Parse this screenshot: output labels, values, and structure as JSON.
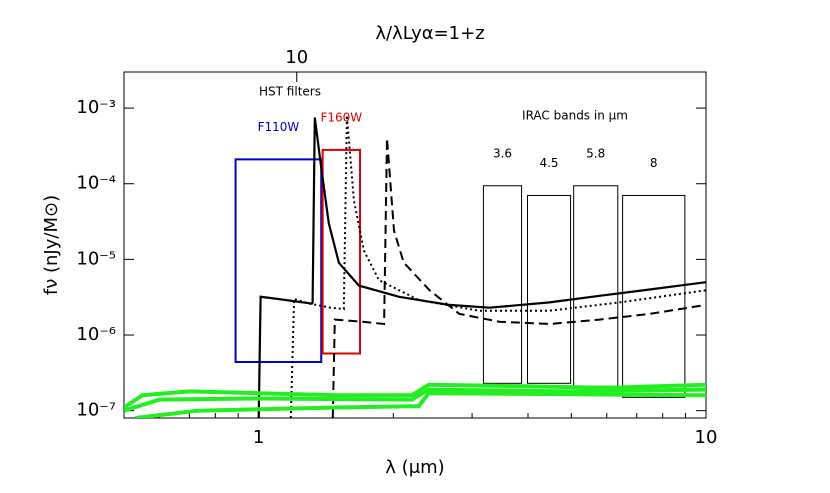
{
  "chart_data": {
    "type": "line",
    "x2label": "λ/λLyα=1+z",
    "xlabel": "λ (μm)",
    "ylabel": "fν  (nJy/M⊙)",
    "xscale": "log",
    "yscale": "log",
    "xlim": [
      0.5,
      10
    ],
    "xticks": [
      1,
      10
    ],
    "xminorticks": [
      0.6,
      0.7,
      0.8,
      0.9,
      2,
      3,
      4,
      5,
      6,
      7,
      8,
      9
    ],
    "x2lim": [
      4.11,
      82.2
    ],
    "x2ticks": [
      10
    ],
    "ylim": [
      8e-08,
      0.003
    ],
    "yticks": [
      {
        "value": 1e-07,
        "label": "10⁻⁷"
      },
      {
        "value": 1e-06,
        "label": "10⁻⁶"
      },
      {
        "value": 1e-05,
        "label": "10⁻⁵"
      },
      {
        "value": 0.0001,
        "label": "10⁻⁴"
      },
      {
        "value": 0.001,
        "label": "10⁻³"
      }
    ],
    "annotations": [
      "HST filters",
      "IRAC bands in μm"
    ],
    "filters": [
      {
        "name": "F110W",
        "color": "#0000cc",
        "x": [
          0.888,
          1.38
        ],
        "y": [
          4.4e-07,
          0.00021
        ]
      },
      {
        "name": "F160W",
        "color": "#dd0000",
        "x": [
          1.39,
          1.685
        ],
        "y": [
          5.7e-07,
          0.00028
        ]
      },
      {
        "name": "3.6",
        "color": "#000000",
        "x": [
          3.18,
          3.87
        ],
        "y": [
          2.3e-07,
          9.4e-05
        ]
      },
      {
        "name": "4.5",
        "color": "#000000",
        "x": [
          3.99,
          4.98
        ],
        "y": [
          2.3e-07,
          7e-05
        ]
      },
      {
        "name": "5.8",
        "color": "#000000",
        "x": [
          5.06,
          6.35
        ],
        "y": [
          2.1e-07,
          9.4e-05
        ]
      },
      {
        "name": "8",
        "color": "#000000",
        "x": [
          6.51,
          8.97
        ],
        "y": [
          1.5e-07,
          7e-05
        ]
      }
    ],
    "series": [
      {
        "color": "#000000",
        "dash": "solid",
        "width": 2.2,
        "x": [
          1.0,
          1.01,
          1.1,
          1.2,
          1.315,
          1.32,
          1.335,
          1.377,
          1.435,
          1.511,
          1.675,
          2.06,
          2.67,
          3.28,
          4.47,
          5.78,
          7.48,
          10
        ],
        "values": [
          8e-08,
          3.2e-06,
          3e-06,
          2.8e-06,
          2.6e-06,
          2.7e-06,
          0.00075,
          0.00018,
          3e-05,
          9e-06,
          4.5e-06,
          3.2e-06,
          2.5e-06,
          2.3e-06,
          2.7e-06,
          3.3e-06,
          4e-06,
          5e-06
        ]
      },
      {
        "color": "#000000",
        "dash": "dotted",
        "width": 2,
        "x": [
          1.18,
          1.2,
          1.3,
          1.45,
          1.55,
          1.575,
          1.633,
          1.72,
          1.858,
          2.28,
          3.11,
          4.47,
          6.41,
          10
        ],
        "values": [
          8e-08,
          3e-06,
          2.6e-06,
          2.3e-06,
          2.2e-06,
          0.0008,
          6e-05,
          1.3e-05,
          5.3e-06,
          2.9e-06,
          2.1e-06,
          2.1e-06,
          2.7e-06,
          3.9e-06
        ]
      },
      {
        "color": "#000000",
        "dash": "dashed",
        "width": 2,
        "x": [
          1.465,
          1.48,
          1.7,
          1.907,
          1.936,
          2.007,
          2.11,
          2.41,
          2.81,
          3.45,
          4.47,
          5.78,
          7.48,
          10
        ],
        "values": [
          8e-08,
          1.6e-06,
          1.5e-06,
          1.4e-06,
          0.0004,
          2.4e-05,
          9.1e-06,
          3.9e-06,
          1.9e-06,
          1.5e-06,
          1.4e-06,
          1.6e-06,
          1.9e-06,
          2.5e-06
        ]
      },
      {
        "color": "#22ee22",
        "dash": "solid",
        "width": 4,
        "x": [
          0.5,
          0.55,
          0.7,
          1.0,
          1.5,
          2.2,
          2.4,
          4,
          6,
          10
        ],
        "values": [
          1.1e-07,
          1.6e-07,
          1.8e-07,
          1.7e-07,
          1.6e-07,
          1.6e-07,
          2.2e-07,
          2.1e-07,
          2e-07,
          2.2e-07
        ]
      },
      {
        "color": "#22ee22",
        "dash": "solid",
        "width": 4,
        "x": [
          0.5,
          0.6,
          1.0,
          2.2,
          2.4,
          5,
          10
        ],
        "values": [
          1e-07,
          1.4e-07,
          1.45e-07,
          1.4e-07,
          1.9e-07,
          1.8e-07,
          1.9e-07
        ]
      },
      {
        "color": "#22ee22",
        "dash": "solid",
        "width": 4,
        "x": [
          0.53,
          0.73,
          1.5,
          2.28,
          2.4,
          10
        ],
        "values": [
          8e-08,
          1e-07,
          1.1e-07,
          1.15e-07,
          1.7e-07,
          1.6e-07
        ]
      }
    ]
  }
}
